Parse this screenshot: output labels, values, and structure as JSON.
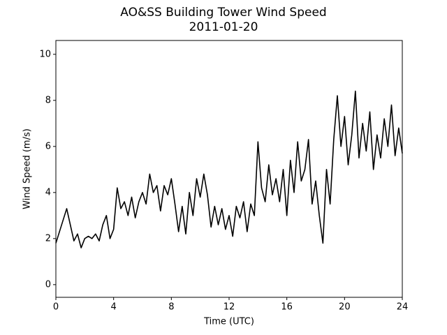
{
  "chart_data": {
    "type": "line",
    "title": "AO&SS Building Tower Wind Speed",
    "subtitle": "2011-01-20",
    "xlabel": "Time (UTC)",
    "ylabel": "Wind Speed (m/s)",
    "xlim": [
      0,
      24
    ],
    "ylim": [
      -0.55,
      10.6
    ],
    "xticks": [
      0,
      4,
      8,
      12,
      16,
      20,
      24
    ],
    "yticks": [
      0,
      2,
      4,
      6,
      8,
      10
    ],
    "grid": false,
    "x": [
      0,
      0.25,
      0.5,
      0.75,
      1,
      1.25,
      1.5,
      1.75,
      2,
      2.25,
      2.5,
      2.75,
      3,
      3.25,
      3.5,
      3.75,
      4,
      4.25,
      4.5,
      4.75,
      5,
      5.25,
      5.5,
      5.75,
      6,
      6.25,
      6.5,
      6.75,
      7,
      7.25,
      7.5,
      7.75,
      8,
      8.25,
      8.5,
      8.75,
      9,
      9.25,
      9.5,
      9.75,
      10,
      10.25,
      10.5,
      10.75,
      11,
      11.25,
      11.5,
      11.75,
      12,
      12.25,
      12.5,
      12.75,
      13,
      13.25,
      13.5,
      13.75,
      14,
      14.25,
      14.5,
      14.75,
      15,
      15.25,
      15.5,
      15.75,
      16,
      16.25,
      16.5,
      16.75,
      17,
      17.25,
      17.5,
      17.75,
      18,
      18.25,
      18.5,
      18.75,
      19,
      19.25,
      19.5,
      19.75,
      20,
      20.25,
      20.5,
      20.75,
      21,
      21.25,
      21.5,
      21.75,
      22,
      22.25,
      22.5,
      22.75,
      23,
      23.25,
      23.5,
      23.75,
      24
    ],
    "series": [
      {
        "color": "#000000",
        "values": [
          1.8,
          2.3,
          2.8,
          3.3,
          2.6,
          1.9,
          2.2,
          1.6,
          2.0,
          2.1,
          2.0,
          2.2,
          1.9,
          2.6,
          3.0,
          2.0,
          2.4,
          4.2,
          3.3,
          3.6,
          3.0,
          3.8,
          2.9,
          3.6,
          4.0,
          3.5,
          4.8,
          4.0,
          4.3,
          3.2,
          4.3,
          3.9,
          4.6,
          3.5,
          2.3,
          3.4,
          2.2,
          4.0,
          3.0,
          4.6,
          3.8,
          4.8,
          3.9,
          2.5,
          3.4,
          2.6,
          3.3,
          2.4,
          3.0,
          2.1,
          3.4,
          2.9,
          3.6,
          2.3,
          3.5,
          3.0,
          6.2,
          4.2,
          3.6,
          5.2,
          3.9,
          4.6,
          3.6,
          5.0,
          3.0,
          5.4,
          4.0,
          6.2,
          4.5,
          5.0,
          6.3,
          3.5,
          4.5,
          3.0,
          1.8,
          5.0,
          3.5,
          6.3,
          8.2,
          6.0,
          7.3,
          5.2,
          6.5,
          8.4,
          5.5,
          7.0,
          5.8,
          7.5,
          5.0,
          6.5,
          5.5,
          7.2,
          6.0,
          7.8,
          5.6,
          6.8,
          5.7
        ]
      }
    ]
  }
}
